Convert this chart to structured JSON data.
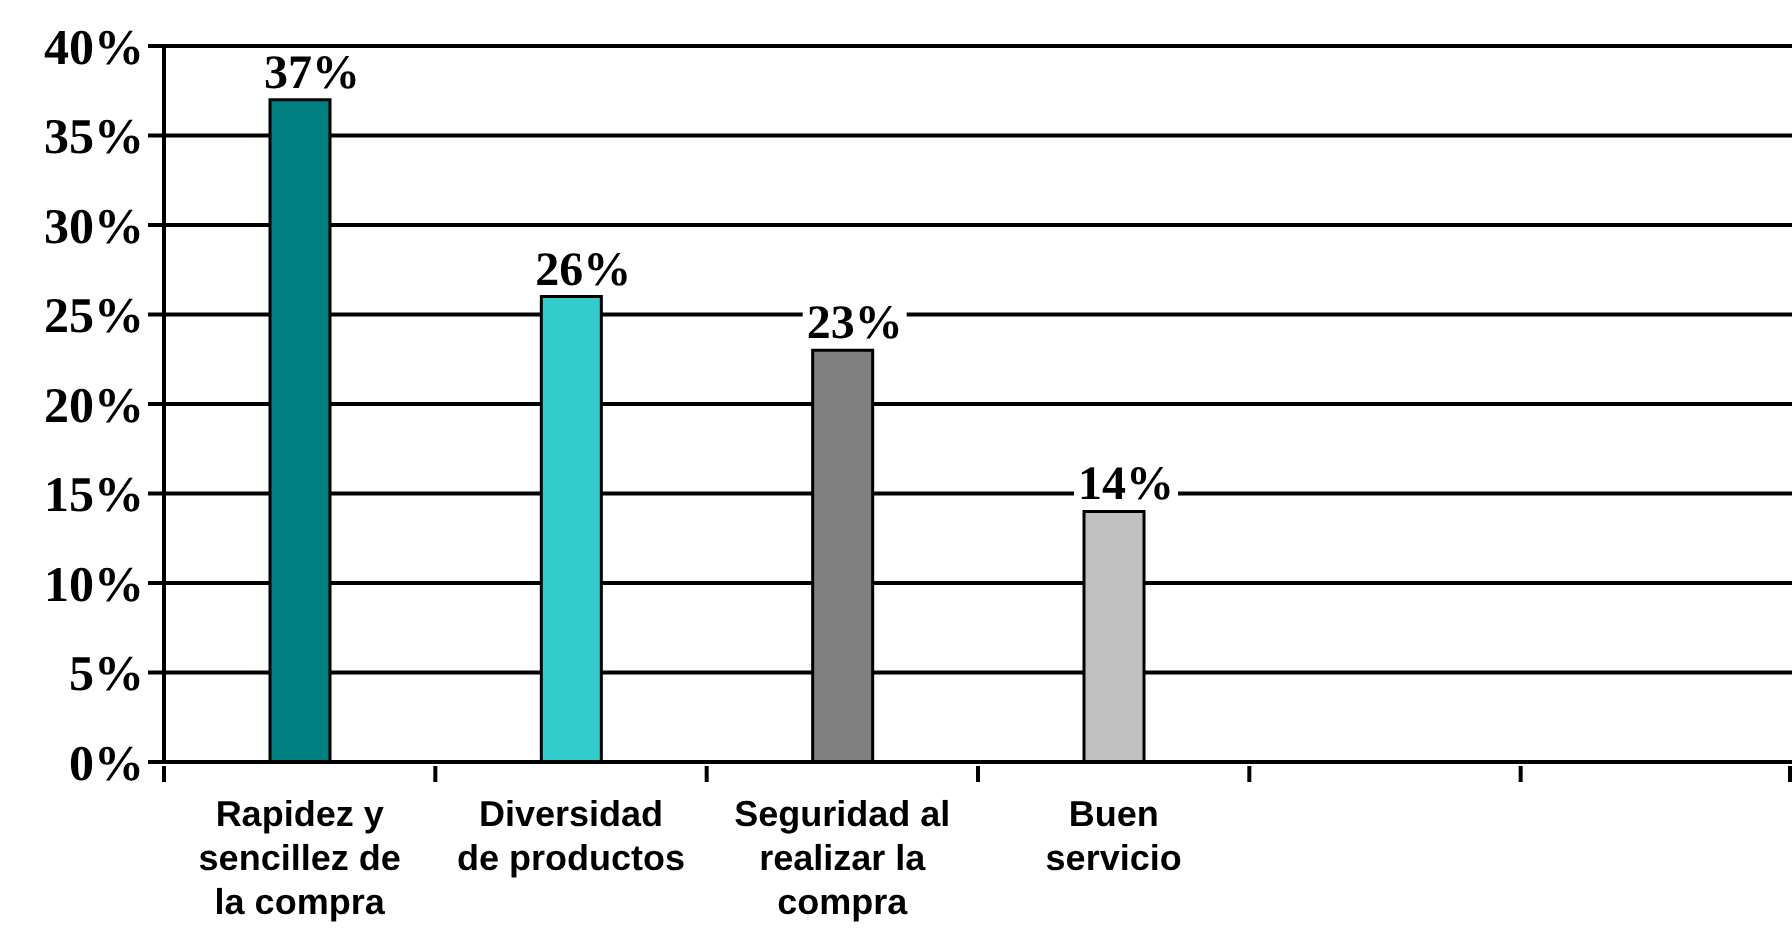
{
  "chart_data": {
    "type": "bar",
    "categories": [
      "Rapidez y sencillez de la compra",
      "Diversidad de productos",
      "Seguridad al realizar la compra",
      "Buen servicio",
      null,
      null
    ],
    "values": [
      37,
      26,
      23,
      14,
      null,
      null
    ],
    "colors": [
      "#008080",
      "#33cccc",
      "#808080",
      "#c0c0c0",
      null,
      null
    ],
    "value_labels": [
      "37%",
      "26%",
      "23%",
      "14%",
      null,
      null
    ],
    "ylim": [
      0,
      40
    ],
    "yticks": [
      {
        "value": 0,
        "label": "0%"
      },
      {
        "value": 5,
        "label": "5%"
      },
      {
        "value": 10,
        "label": "10%"
      },
      {
        "value": 15,
        "label": "15%"
      },
      {
        "value": 20,
        "label": "20%"
      },
      {
        "value": 25,
        "label": "25%"
      },
      {
        "value": 30,
        "label": "30%"
      },
      {
        "value": 35,
        "label": "35%"
      },
      {
        "value": 40,
        "label": "40%"
      }
    ],
    "grid": "y"
  }
}
